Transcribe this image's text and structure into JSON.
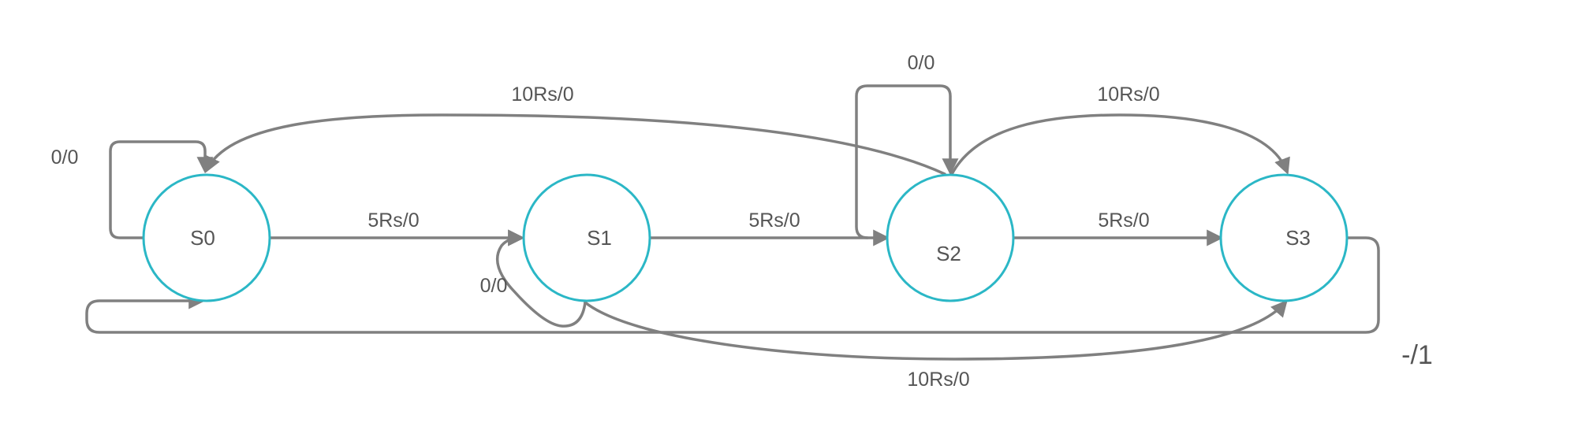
{
  "colors": {
    "state_stroke": "#2bb7c6",
    "edge": "#808080",
    "text": "#555555",
    "background": "#ffffff"
  },
  "states": [
    {
      "id": "s0",
      "label": "S0"
    },
    {
      "id": "s1",
      "label": "S1"
    },
    {
      "id": "s2",
      "label": "S2"
    },
    {
      "id": "s3",
      "label": "S3"
    }
  ],
  "transitions": [
    {
      "id": "s0-self",
      "from": "S0",
      "to": "S0",
      "label": "0/0"
    },
    {
      "id": "s0-s1",
      "from": "S0",
      "to": "S1",
      "label": "5Rs/0"
    },
    {
      "id": "s1-self",
      "from": "S1",
      "to": "S1",
      "label": "0/0"
    },
    {
      "id": "s1-s2",
      "from": "S1",
      "to": "S2",
      "label": "5Rs/0"
    },
    {
      "id": "s2-self",
      "from": "S2",
      "to": "S2",
      "label": "0/0"
    },
    {
      "id": "s2-s3",
      "from": "S2",
      "to": "S3",
      "label": "5Rs/0"
    },
    {
      "id": "s2-s0",
      "from": "S2",
      "to": "S0",
      "label": "10Rs/0"
    },
    {
      "id": "s2-s3-arc",
      "from": "S2",
      "to": "S3",
      "label": "10Rs/0"
    },
    {
      "id": "s1-s3",
      "from": "S1",
      "to": "S3",
      "label": "10Rs/0"
    },
    {
      "id": "s3-s0",
      "from": "S3",
      "to": "S0",
      "label": "-/1"
    }
  ]
}
